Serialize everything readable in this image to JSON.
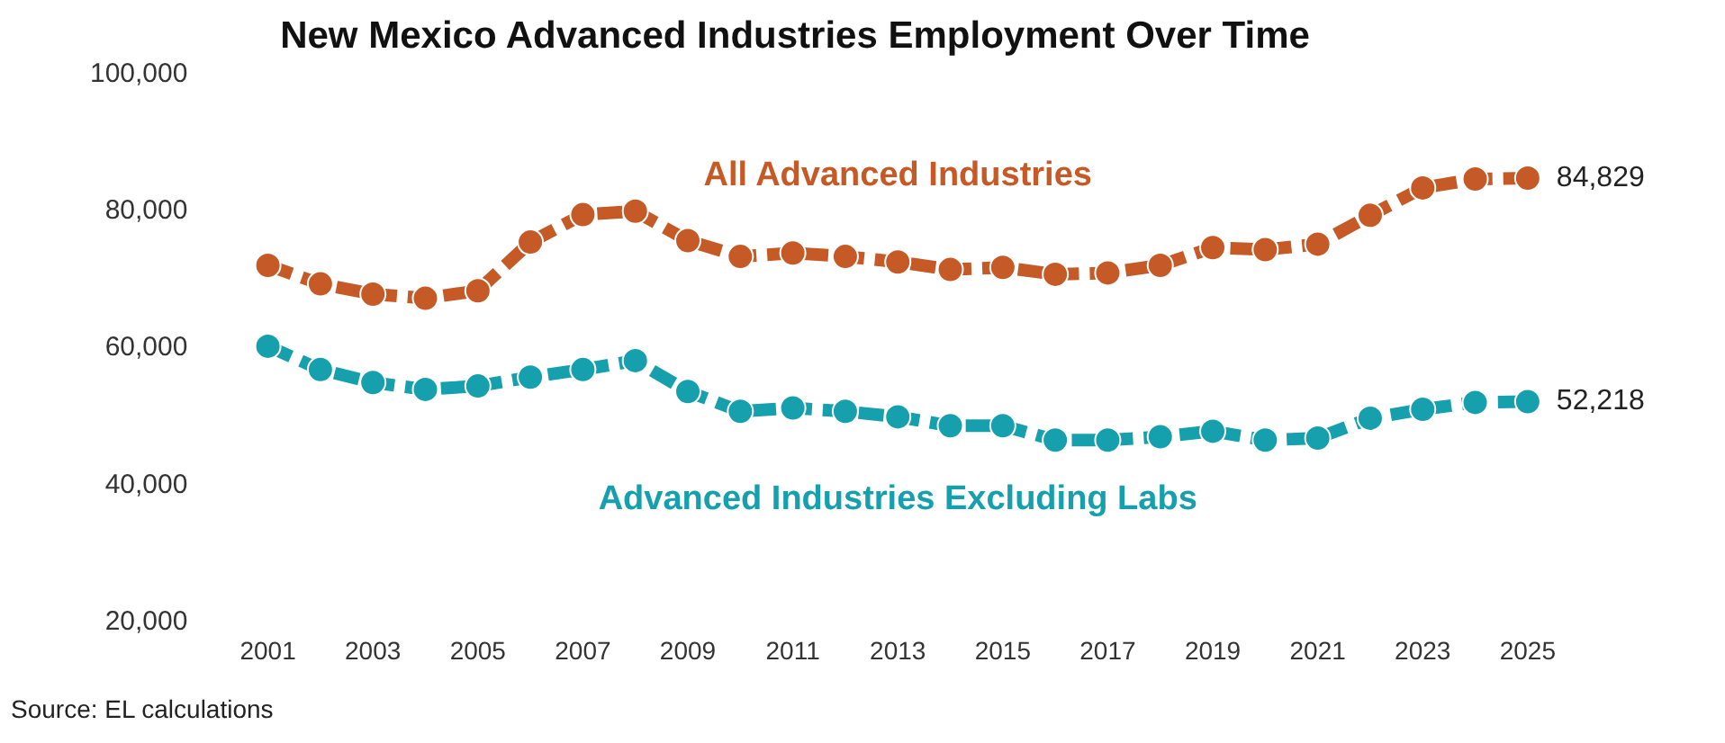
{
  "chart_data": {
    "type": "line",
    "title": "New Mexico Advanced Industries Employment Over Time",
    "categories": [
      "2001",
      null,
      "2003",
      null,
      "2005",
      null,
      "2007",
      null,
      "2009",
      null,
      "2011",
      null,
      "2013",
      null,
      "2015",
      null,
      "2017",
      null,
      "2019",
      null,
      "2021",
      null,
      "2023",
      null,
      "2025"
    ],
    "series": [
      {
        "name": "All Advanced Industries",
        "color": "#c55a27",
        "values": [
          72100,
          69400,
          67900,
          67300,
          68400,
          75500,
          79500,
          80000,
          75700,
          73400,
          73900,
          73400,
          72600,
          71500,
          71800,
          70800,
          71000,
          72100,
          74700,
          74400,
          75200,
          79400,
          83400,
          84700,
          84829
        ],
        "value_labels": [
          null,
          null,
          null,
          null,
          null,
          null,
          null,
          null,
          null,
          null,
          null,
          null,
          null,
          null,
          null,
          null,
          null,
          null,
          null,
          null,
          null,
          null,
          null,
          null,
          "84,829"
        ]
      },
      {
        "name": "Advanced Industries Excluding Labs",
        "color": "#16a0ad",
        "values": [
          60300,
          56900,
          55000,
          54000,
          54500,
          55800,
          56900,
          58200,
          53700,
          50800,
          51300,
          50800,
          50000,
          48700,
          48700,
          46600,
          46600,
          47100,
          47900,
          46600,
          46900,
          49800,
          51100,
          52100,
          52218
        ],
        "value_labels": [
          null,
          null,
          null,
          null,
          null,
          null,
          null,
          null,
          null,
          null,
          null,
          null,
          null,
          null,
          null,
          null,
          null,
          null,
          null,
          null,
          null,
          null,
          null,
          null,
          "52,218"
        ]
      }
    ],
    "ylim": [
      20000,
      100000
    ],
    "yticks": [
      {
        "value": 20000,
        "label": "20,000"
      },
      {
        "value": 40000,
        "label": "40,000"
      },
      {
        "value": 60000,
        "label": "60,000"
      },
      {
        "value": 80000,
        "label": "80,000"
      },
      {
        "value": 100000,
        "label": "100,000"
      }
    ],
    "grid": false,
    "legend": false,
    "marker": "circle",
    "line_style": "dashed",
    "annotations": [
      "Source: EL calculations"
    ]
  }
}
